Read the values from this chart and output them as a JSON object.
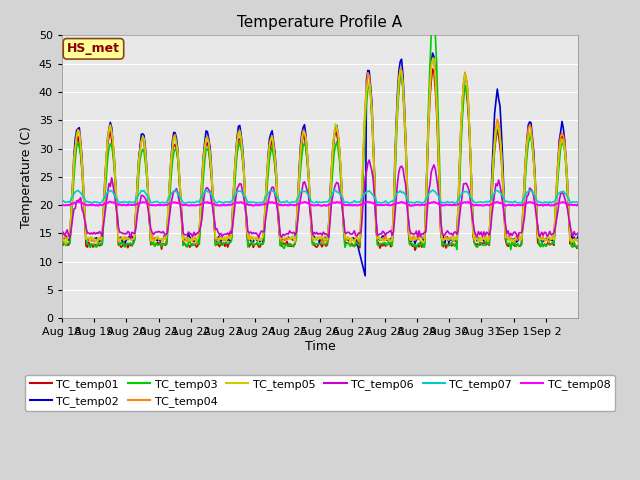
{
  "title": "Temperature Profile A",
  "xlabel": "Time",
  "ylabel": "Temperature (C)",
  "ylim": [
    0,
    50
  ],
  "yticks": [
    0,
    5,
    10,
    15,
    20,
    25,
    30,
    35,
    40,
    45,
    50
  ],
  "plot_bg_color": "#e8e8e8",
  "fig_bg_color": "#d4d4d4",
  "annotation_text": "HS_met",
  "annotation_bg": "#ffff99",
  "annotation_border": "#8b4513",
  "annotation_text_color": "#8b0000",
  "series_colors": {
    "TC_temp01": "#cc0000",
    "TC_temp02": "#0000cc",
    "TC_temp03": "#00cc00",
    "TC_temp04": "#ff8800",
    "TC_temp05": "#cccc00",
    "TC_temp06": "#cc00cc",
    "TC_temp07": "#00cccc",
    "TC_temp08": "#ff00ff"
  },
  "date_labels": [
    "Aug 18",
    "Aug 19",
    "Aug 20",
    "Aug 21",
    "Aug 22",
    "Aug 23",
    "Aug 24",
    "Aug 25",
    "Aug 26",
    "Aug 27",
    "Aug 28",
    "Aug 29",
    "Aug 30",
    "Aug 31",
    "Sep 1",
    "Sep 2"
  ]
}
